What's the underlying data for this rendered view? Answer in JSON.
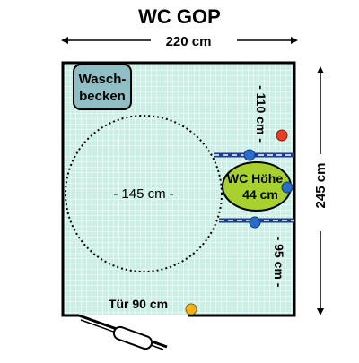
{
  "title": "WC GOP",
  "width_label": "220 cm",
  "height_label": "245 cm",
  "sink": {
    "line1": "Wasch-",
    "line2": "becken"
  },
  "turning_circle_label": "- 145 cm -",
  "wc": {
    "line1": "WC Höhe",
    "line2": "44 cm"
  },
  "top_distance_label": "- 110 cm -",
  "bottom_distance_label": "- 95 cm -",
  "door_label": "Tür 90 cm",
  "colors": {
    "floor": "#c8f0e6",
    "grid": "#ffffff",
    "sink_fill": "#8fbfc4",
    "wc_fill": "#a6d12e",
    "grab_bar": "#1e3c96",
    "blue_dot": "#2a6cc7",
    "red_dot": "#e8401e",
    "yellow_dot": "#f0b418"
  }
}
